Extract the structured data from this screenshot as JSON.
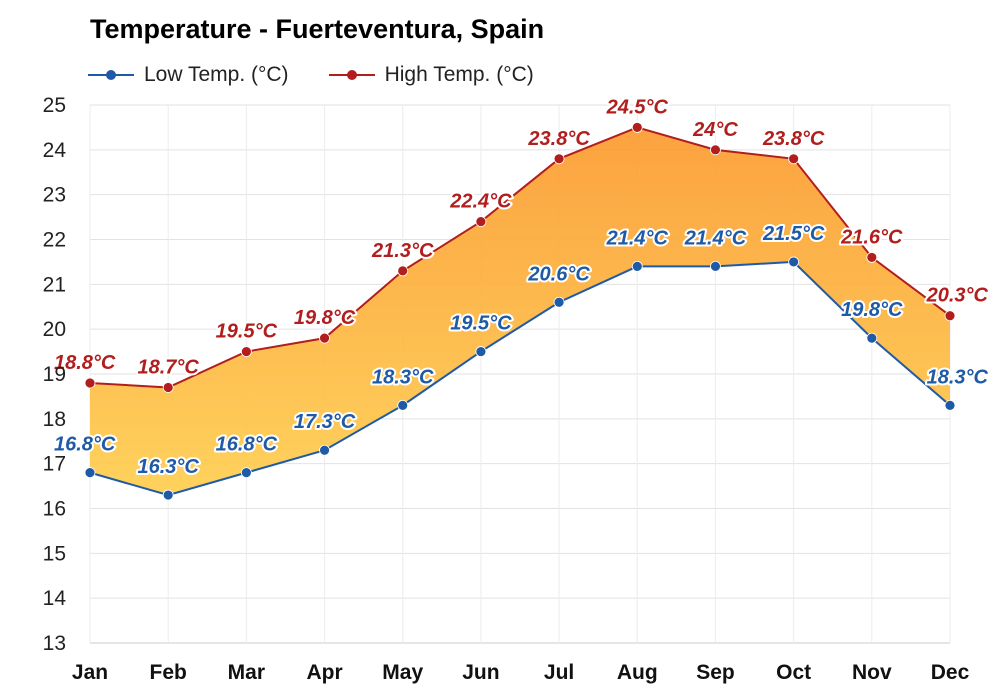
{
  "chart_data": {
    "type": "area",
    "title": "Temperature - Fuerteventura, Spain",
    "categories": [
      "Jan",
      "Feb",
      "Mar",
      "Apr",
      "May",
      "Jun",
      "Jul",
      "Aug",
      "Sep",
      "Oct",
      "Nov",
      "Dec"
    ],
    "ylim": [
      13,
      25
    ],
    "yticks": [
      13,
      14,
      15,
      16,
      17,
      18,
      19,
      20,
      21,
      22,
      23,
      24,
      25
    ],
    "grid": true,
    "legend_position": "top-left",
    "fill_between_series": true,
    "series": [
      {
        "name": "Low Temp. (°C)",
        "color": "#1f5aa6",
        "values": [
          16.8,
          16.3,
          16.8,
          17.3,
          18.3,
          19.5,
          20.6,
          21.4,
          21.4,
          21.5,
          19.8,
          18.3
        ],
        "labels": [
          "16.8°C",
          "16.3°C",
          "16.8°C",
          "17.3°C",
          "18.3°C",
          "19.5°C",
          "20.6°C",
          "21.4°C",
          "21.4°C",
          "21.5°C",
          "19.8°C",
          "18.3°C"
        ]
      },
      {
        "name": "High Temp. (°C)",
        "color": "#b21e1e",
        "values": [
          18.8,
          18.7,
          19.5,
          19.8,
          21.3,
          22.4,
          23.8,
          24.5,
          24,
          23.8,
          21.6,
          20.3
        ],
        "labels": [
          "18.8°C",
          "18.7°C",
          "19.5°C",
          "19.8°C",
          "21.3°C",
          "22.4°C",
          "23.8°C",
          "24.5°C",
          "24°C",
          "23.8°C",
          "21.6°C",
          "20.3°C"
        ]
      }
    ],
    "fill_colors": [
      "#ffce4f",
      "#fb9a2f"
    ]
  }
}
